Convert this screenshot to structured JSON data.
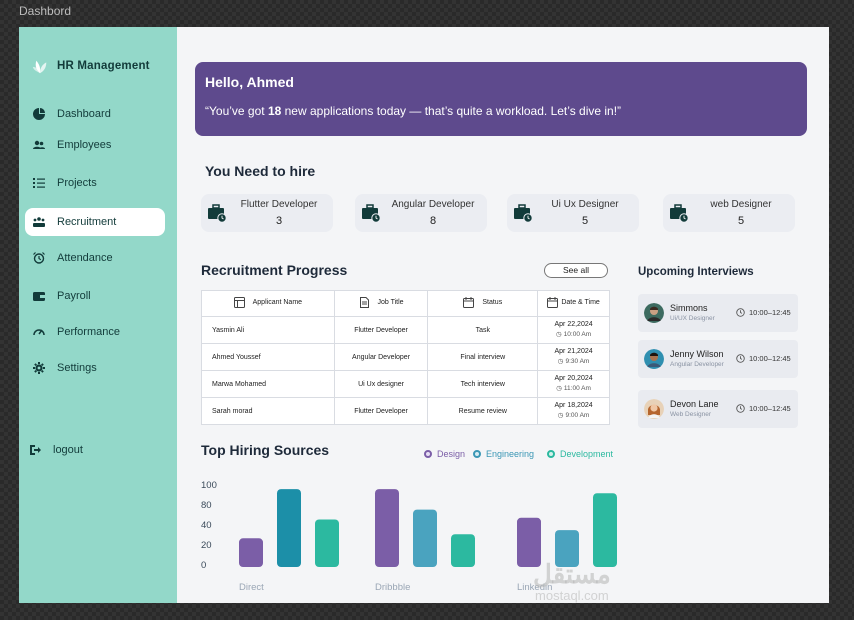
{
  "frame_label": "Dashbord",
  "brand": {
    "name": "HR Management"
  },
  "sidebar": {
    "items": [
      {
        "label": "Dashboard",
        "icon": "pie-chart-icon"
      },
      {
        "label": "Employees",
        "icon": "users-icon"
      },
      {
        "label": "Projects",
        "icon": "list-icon"
      },
      {
        "label": "Recruitment",
        "icon": "team-icon",
        "active": true
      },
      {
        "label": "Attendance",
        "icon": "alarm-icon"
      },
      {
        "label": "Payroll",
        "icon": "wallet-icon"
      },
      {
        "label": "Performance",
        "icon": "gauge-icon"
      },
      {
        "label": "Settings",
        "icon": "gear-icon"
      }
    ],
    "logout": "logout"
  },
  "banner": {
    "title": "Hello, Ahmed",
    "msg_before": "“You’ve got ",
    "msg_count": "18",
    "msg_after": " new applications today — that’s quite a workload. Let’s dive in!”"
  },
  "hire": {
    "title": "You Need to hire",
    "cards": [
      {
        "role": "Flutter Developer",
        "count": "3"
      },
      {
        "role": "Angular Developer",
        "count": "8"
      },
      {
        "role": "Ui Ux Designer",
        "count": "5"
      },
      {
        "role": "web Designer",
        "count": "5"
      }
    ]
  },
  "progress": {
    "title": "Recruitment Progress",
    "see_all": "See all",
    "headers": [
      "Applicant Name",
      "Job Title",
      "Status",
      "Date & Time"
    ],
    "rows": [
      {
        "name": "Yasmin Ali",
        "job": "Flutter Developer",
        "status": "Task",
        "date": "Apr 22,2024",
        "time": "10:00 Am"
      },
      {
        "name": "Ahmed Youssef",
        "job": "Angular Developer",
        "status": "Final interview",
        "date": "Apr 21,2024",
        "time": "9:30 Am"
      },
      {
        "name": "Marwa Mohamed",
        "job": "Ui Ux designer",
        "status": "Tech interview",
        "date": "Apr 20,2024",
        "time": "11:00 Am"
      },
      {
        "name": "Sarah morad",
        "job": "Flutter Developer",
        "status": "Resume review",
        "date": "Apr 18,2024",
        "time": "9:00 Am"
      }
    ]
  },
  "interviews": {
    "title": "Upcoming Interviews",
    "items": [
      {
        "name": "Simmons",
        "role": "Ui/UX Designer",
        "time": "10:00–12:45"
      },
      {
        "name": "Jenny Wilson",
        "role": "Angular Developer",
        "time": "10:00–12:45"
      },
      {
        "name": "Devon Lane",
        "role": "Web Designer",
        "time": "10:00–12:45"
      }
    ]
  },
  "sources": {
    "title": "Top Hiring Sources",
    "legend": [
      {
        "name": "Design",
        "color": "#7b5ea7"
      },
      {
        "name": "Engineering",
        "color": "#3b97b5"
      },
      {
        "name": "Development",
        "color": "#2cb9a0"
      }
    ]
  },
  "chart_data": {
    "type": "bar",
    "categories": [
      "Direct",
      "Dribbble",
      "Linkedin"
    ],
    "yticks": [
      100,
      80,
      40,
      20,
      0
    ],
    "series": [
      {
        "name": "Design",
        "values": [
          35,
          95,
          60
        ]
      },
      {
        "name": "Engineering",
        "values": [
          95,
          70,
          45
        ]
      },
      {
        "name": "Development",
        "values": [
          58,
          40,
          90
        ]
      }
    ],
    "colors": [
      "#7b5ea7",
      "#1c8fa8",
      "#2cb9a0"
    ],
    "colors_alt": [
      "#7b5ea7",
      "#4aa3bf",
      "#2cb9a0"
    ],
    "legend": "top-right",
    "grid": false
  },
  "watermark": {
    "main": "مستقل",
    "sub": "mostaql.com"
  }
}
